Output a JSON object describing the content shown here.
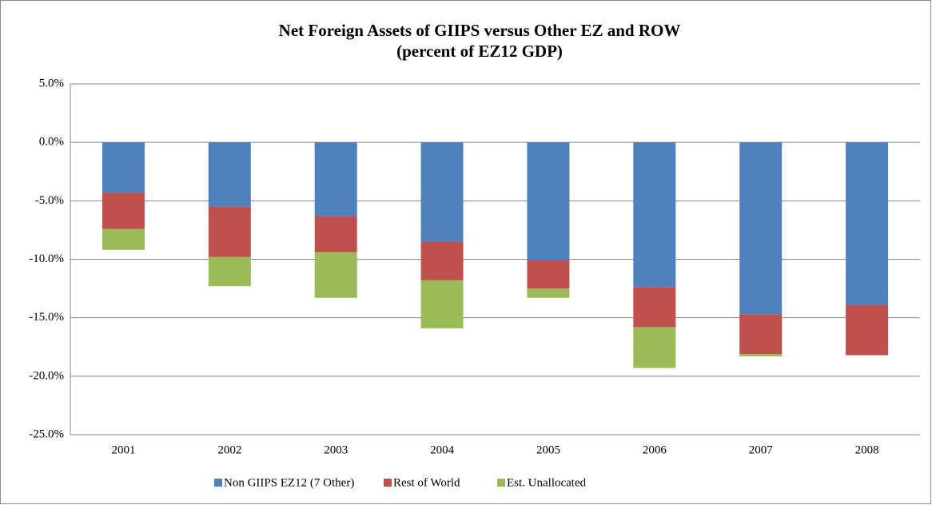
{
  "chart_data": {
    "type": "stacked-bar",
    "title": "Net Foreign Assets of GIIPS versus Other EZ and ROW",
    "subtitle": "(percent of EZ12 GDP)",
    "categories": [
      "2001",
      "2002",
      "2003",
      "2004",
      "2005",
      "2006",
      "2007",
      "2008"
    ],
    "series": [
      {
        "name": "Non GIIPS EZ12 (7 Other)",
        "color": "#4f81bd",
        "values": [
          -4.3,
          -5.5,
          -6.3,
          -8.5,
          -10.1,
          -12.4,
          -14.7,
          -13.9
        ]
      },
      {
        "name": "Rest of World",
        "color": "#c0504d",
        "values": [
          -3.1,
          -4.3,
          -3.1,
          -3.3,
          -2.4,
          -3.4,
          -3.4,
          -4.3
        ]
      },
      {
        "name": "Est. Unallocated",
        "color": "#9bbb59",
        "values": [
          -1.8,
          -2.5,
          -3.9,
          -4.1,
          -0.8,
          -3.5,
          -0.2,
          0
        ]
      }
    ],
    "ylim": [
      -25,
      5
    ],
    "yticks": [
      {
        "value": -25,
        "label": "-25.0%"
      },
      {
        "value": -20,
        "label": "-20.0%"
      },
      {
        "value": -15,
        "label": "-15.0%"
      },
      {
        "value": -10,
        "label": "-10.0%"
      },
      {
        "value": -5,
        "label": "-5.0%"
      },
      {
        "value": 0,
        "label": "0.0%"
      },
      {
        "value": 5,
        "label": "5.0%"
      }
    ],
    "grid": true,
    "legend": "bottom"
  }
}
